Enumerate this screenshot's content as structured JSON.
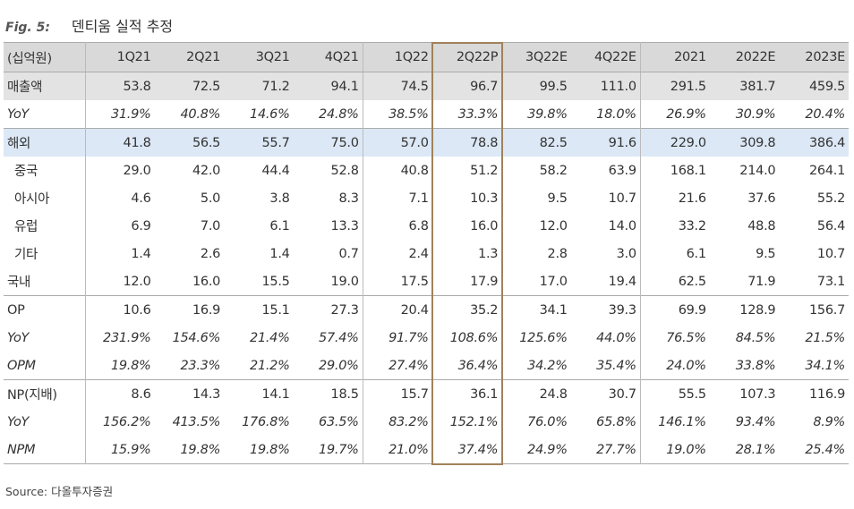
{
  "header": {
    "fig": "Fig. 5:",
    "title": "덴티움 실적 추정"
  },
  "table": {
    "columns": [
      "(십억원)",
      "1Q21",
      "2Q21",
      "3Q21",
      "4Q21",
      "1Q22",
      "2Q22P",
      "3Q22E",
      "4Q22E",
      "2021",
      "2022E",
      "2023E"
    ],
    "rows": [
      [
        "매출액",
        "53.8",
        "72.5",
        "71.2",
        "94.1",
        "74.5",
        "96.7",
        "99.5",
        "111.0",
        "291.5",
        "381.7",
        "459.5"
      ],
      [
        "YoY",
        "31.9%",
        "40.8%",
        "14.6%",
        "24.8%",
        "38.5%",
        "33.3%",
        "39.8%",
        "18.0%",
        "26.9%",
        "30.9%",
        "20.4%"
      ],
      [
        "해외",
        "41.8",
        "56.5",
        "55.7",
        "75.0",
        "57.0",
        "78.8",
        "82.5",
        "91.6",
        "229.0",
        "309.8",
        "386.4"
      ],
      [
        "중국",
        "29.0",
        "42.0",
        "44.4",
        "52.8",
        "40.8",
        "51.2",
        "58.2",
        "63.9",
        "168.1",
        "214.0",
        "264.1"
      ],
      [
        "아시아",
        "4.6",
        "5.0",
        "3.8",
        "8.3",
        "7.1",
        "10.3",
        "9.5",
        "10.7",
        "21.6",
        "37.6",
        "55.2"
      ],
      [
        "유럽",
        "6.9",
        "7.0",
        "6.1",
        "13.3",
        "6.8",
        "16.0",
        "12.0",
        "14.0",
        "33.2",
        "48.8",
        "56.4"
      ],
      [
        "기타",
        "1.4",
        "2.6",
        "1.4",
        "0.7",
        "2.4",
        "1.3",
        "2.8",
        "3.0",
        "6.1",
        "9.5",
        "10.7"
      ],
      [
        "국내",
        "12.0",
        "16.0",
        "15.5",
        "19.0",
        "17.5",
        "17.9",
        "17.0",
        "19.4",
        "62.5",
        "71.9",
        "73.1"
      ],
      [
        "OP",
        "10.6",
        "16.9",
        "15.1",
        "27.3",
        "20.4",
        "35.2",
        "34.1",
        "39.3",
        "69.9",
        "128.9",
        "156.7"
      ],
      [
        "YoY",
        "231.9%",
        "154.6%",
        "21.4%",
        "57.4%",
        "91.7%",
        "108.6%",
        "125.6%",
        "44.0%",
        "76.5%",
        "84.5%",
        "21.5%"
      ],
      [
        "OPM",
        "19.8%",
        "23.3%",
        "21.2%",
        "29.0%",
        "27.4%",
        "36.4%",
        "34.2%",
        "35.4%",
        "24.0%",
        "33.8%",
        "34.1%"
      ],
      [
        "NP(지배)",
        "8.6",
        "14.3",
        "14.1",
        "18.5",
        "15.7",
        "36.1",
        "24.8",
        "30.7",
        "55.5",
        "107.3",
        "116.9"
      ],
      [
        "YoY",
        "156.2%",
        "413.5%",
        "176.8%",
        "63.5%",
        "83.2%",
        "152.1%",
        "76.0%",
        "65.8%",
        "146.1%",
        "93.4%",
        "8.9%"
      ],
      [
        "NPM",
        "15.9%",
        "19.8%",
        "19.8%",
        "19.7%",
        "21.0%",
        "37.4%",
        "24.9%",
        "27.7%",
        "19.0%",
        "28.1%",
        "25.4%"
      ]
    ]
  },
  "source": "Source: 다올투자증권"
}
